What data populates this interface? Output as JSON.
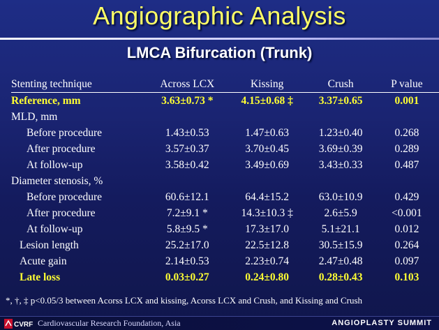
{
  "title": "Angiographic Analysis",
  "subtitle": "LMCA Bifurcation (Trunk)",
  "table": {
    "headers": [
      "Stenting technique",
      "Across LCX",
      "Kissing",
      "Crush",
      "P value"
    ],
    "rows": [
      {
        "label": "Reference, mm",
        "values": [
          "3.63±0.73 *",
          "4.15±0.68 ‡",
          "3.37±0.65",
          "0.001"
        ],
        "highlight": true,
        "indent": 0
      },
      {
        "label": "MLD, mm",
        "values": [
          "",
          "",
          "",
          ""
        ],
        "highlight": false,
        "indent": 0
      },
      {
        "label": "Before procedure",
        "values": [
          "1.43±0.53",
          "1.47±0.63",
          "1.23±0.40",
          "0.268"
        ],
        "highlight": false,
        "indent": 2
      },
      {
        "label": "After procedure",
        "values": [
          "3.57±0.37",
          "3.70±0.45",
          "3.69±0.39",
          "0.289"
        ],
        "highlight": false,
        "indent": 2
      },
      {
        "label": "At follow-up",
        "values": [
          "3.58±0.42",
          "3.49±0.69",
          "3.43±0.33",
          "0.487"
        ],
        "highlight": false,
        "indent": 2
      },
      {
        "label": "Diameter stenosis, %",
        "values": [
          "",
          "",
          "",
          ""
        ],
        "highlight": false,
        "indent": 0
      },
      {
        "label": "Before procedure",
        "values": [
          "60.6±12.1",
          "64.4±15.2",
          "63.0±10.9",
          "0.429"
        ],
        "highlight": false,
        "indent": 2
      },
      {
        "label": "After procedure",
        "values": [
          "7.2±9.1 *",
          "14.3±10.3 ‡",
          "2.6±5.9",
          "<0.001"
        ],
        "highlight": false,
        "indent": 2
      },
      {
        "label": "At follow-up",
        "values": [
          "5.8±9.5 *",
          "17.3±17.0",
          "5.1±21.1",
          "0.012"
        ],
        "highlight": false,
        "indent": 2
      },
      {
        "label": "Lesion length",
        "values": [
          "25.2±17.0",
          "22.5±12.8",
          "30.5±15.9",
          "0.264"
        ],
        "highlight": false,
        "indent": 3
      },
      {
        "label": "Acute gain",
        "values": [
          "2.14±0.53",
          "2.23±0.74",
          "2.47±0.48",
          "0.097"
        ],
        "highlight": false,
        "indent": 3
      },
      {
        "label": "Late loss",
        "values": [
          "0.03±0.27",
          "0.24±0.80",
          "0.28±0.43",
          "0.103"
        ],
        "highlight": true,
        "indent": 3
      }
    ]
  },
  "footnote": "*, †, ‡ p<0.05/3 between Acorss LCX and kissing, Acorss LCX and Crush, and Kissing and Crush",
  "footer": {
    "logo_text": "CVRF",
    "organization": "Cardiovascular Research Foundation, Asia",
    "event": "ANGIOPLASTY SUMMIT"
  },
  "colors": {
    "background": "#1a2472",
    "title": "#ffff66",
    "highlight": "#ffff33",
    "text": "#ffffff"
  }
}
